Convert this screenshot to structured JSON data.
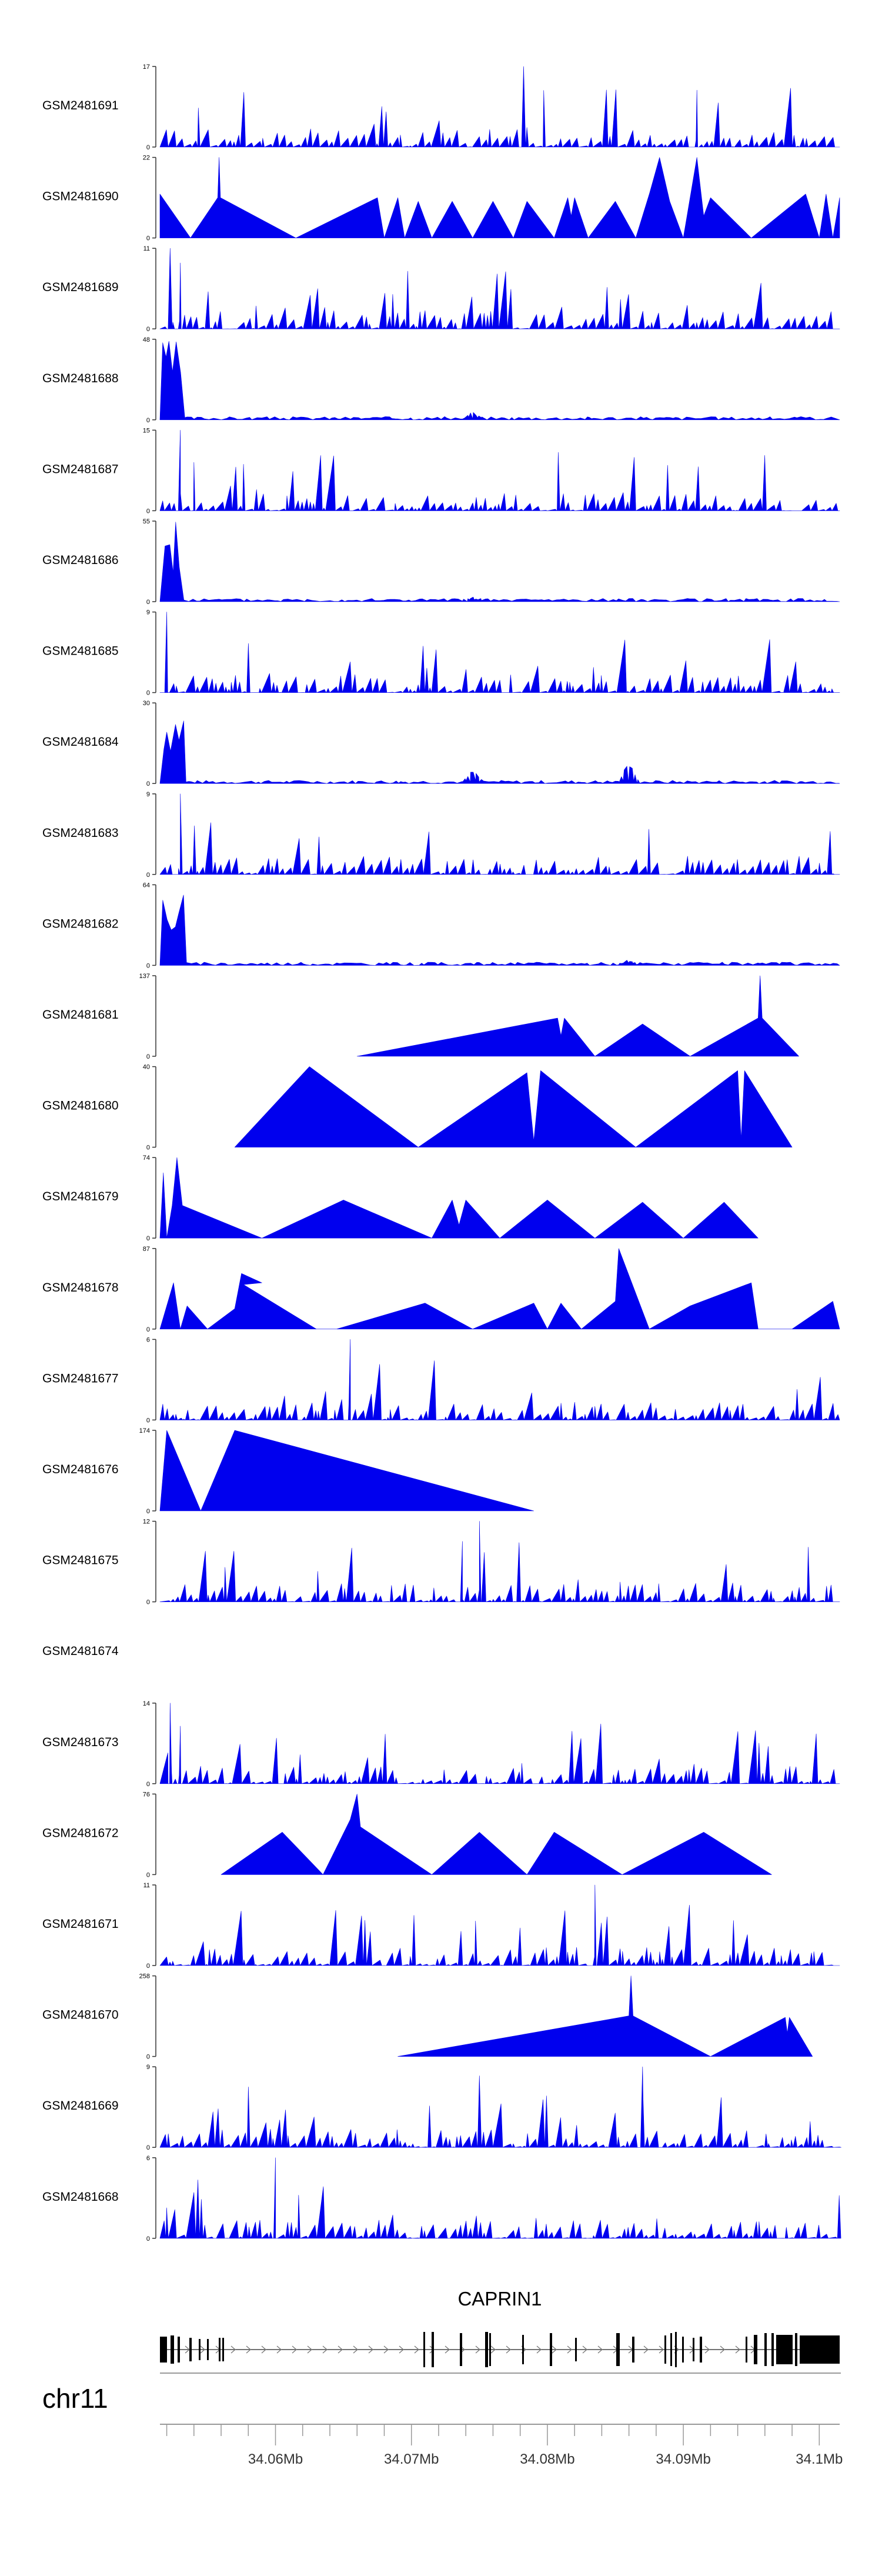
{
  "chart_data": {
    "type": "area",
    "title": "",
    "colors": {
      "signal": "#0000ee",
      "gene": "#000000",
      "axis": "#333333",
      "genome_axis": "#999999"
    },
    "tracks": [
      {
        "name": "GSM2481691",
        "ymax": 17,
        "style": "spiky",
        "seed": 1,
        "peaks": [
          [
            53.5,
            17
          ],
          [
            79,
            12
          ]
        ]
      },
      {
        "name": "GSM2481690",
        "ymax": 22,
        "style": "points",
        "points": [
          [
            0,
            0
          ],
          [
            0,
            12
          ],
          [
            4.5,
            0
          ],
          [
            8.5,
            11
          ],
          [
            8.7,
            22
          ],
          [
            8.9,
            11
          ],
          [
            20,
            0
          ],
          [
            32,
            11
          ],
          [
            33,
            0
          ],
          [
            35,
            11
          ],
          [
            36,
            0
          ],
          [
            38,
            10
          ],
          [
            40,
            0
          ],
          [
            43,
            10
          ],
          [
            46,
            0
          ],
          [
            49,
            10
          ],
          [
            52,
            0
          ],
          [
            54,
            10
          ],
          [
            58,
            0
          ],
          [
            60,
            11
          ],
          [
            60.5,
            6
          ],
          [
            61,
            11
          ],
          [
            63,
            0
          ],
          [
            67,
            10
          ],
          [
            70,
            0
          ],
          [
            72,
            12
          ],
          [
            73.5,
            22
          ],
          [
            75,
            10
          ],
          [
            77,
            0
          ],
          [
            79,
            22
          ],
          [
            80,
            6
          ],
          [
            81,
            11
          ],
          [
            87,
            0
          ],
          [
            95,
            12
          ],
          [
            97,
            0
          ],
          [
            98,
            12
          ],
          [
            99,
            0
          ],
          [
            100,
            11
          ],
          [
            100,
            0
          ]
        ]
      },
      {
        "name": "GSM2481689",
        "ymax": 11,
        "style": "spiky",
        "seed": 2,
        "peaks": [
          [
            1.5,
            11
          ],
          [
            3,
            9
          ]
        ]
      },
      {
        "name": "GSM2481688",
        "ymax": 48,
        "style": "early",
        "seed": 3,
        "peaks": [
          [
            46,
            6
          ]
        ]
      },
      {
        "name": "GSM2481687",
        "ymax": 15,
        "style": "spiky",
        "seed": 4,
        "peaks": [
          [
            3,
            15
          ],
          [
            5,
            9
          ]
        ]
      },
      {
        "name": "GSM2481686",
        "ymax": 55,
        "style": "early",
        "seed": 5,
        "peaks": [
          [
            46,
            4
          ]
        ]
      },
      {
        "name": "GSM2481685",
        "ymax": 9,
        "style": "spiky",
        "seed": 6,
        "peaks": [
          [
            1,
            9
          ]
        ]
      },
      {
        "name": "GSM2481684",
        "ymax": 30,
        "style": "early",
        "seed": 7,
        "peaks": [
          [
            46,
            7
          ],
          [
            69,
            9
          ]
        ]
      },
      {
        "name": "GSM2481683",
        "ymax": 9,
        "style": "spiky",
        "seed": 8,
        "peaks": [
          [
            3,
            9
          ]
        ]
      },
      {
        "name": "GSM2481682",
        "ymax": 64,
        "style": "early",
        "seed": 9,
        "peaks": [
          [
            69,
            5
          ]
        ]
      },
      {
        "name": "GSM2481681",
        "ymax": 137,
        "style": "points",
        "points": [
          [
            29,
            0
          ],
          [
            58.5,
            65
          ],
          [
            59,
            35
          ],
          [
            59.5,
            65
          ],
          [
            64,
            0
          ],
          [
            71,
            55
          ],
          [
            78,
            0
          ],
          [
            88,
            65
          ],
          [
            88.3,
            137
          ],
          [
            88.6,
            65
          ],
          [
            94,
            0
          ]
        ]
      },
      {
        "name": "GSM2481680",
        "ymax": 40,
        "style": "points",
        "points": [
          [
            11,
            0
          ],
          [
            22,
            40
          ],
          [
            38,
            0
          ],
          [
            54,
            37
          ],
          [
            55,
            3
          ],
          [
            56,
            38
          ],
          [
            70,
            0
          ],
          [
            85,
            38
          ],
          [
            85.5,
            4
          ],
          [
            86,
            38
          ],
          [
            93,
            0
          ]
        ]
      },
      {
        "name": "GSM2481679",
        "ymax": 74,
        "style": "points",
        "points": [
          [
            0,
            0
          ],
          [
            0.5,
            60
          ],
          [
            1,
            0
          ],
          [
            1.8,
            30
          ],
          [
            2.5,
            74
          ],
          [
            3.3,
            30
          ],
          [
            15,
            0
          ],
          [
            27,
            35
          ],
          [
            40,
            0
          ],
          [
            43,
            35
          ],
          [
            44,
            12
          ],
          [
            45,
            35
          ],
          [
            50,
            0
          ],
          [
            57,
            35
          ],
          [
            64,
            0
          ],
          [
            71,
            33
          ],
          [
            77,
            0
          ],
          [
            83,
            33
          ],
          [
            88,
            0
          ]
        ]
      },
      {
        "name": "GSM2481678",
        "ymax": 87,
        "style": "points",
        "points": [
          [
            0,
            0
          ],
          [
            2,
            50
          ],
          [
            3,
            0
          ],
          [
            4,
            25
          ],
          [
            7,
            0
          ],
          [
            11,
            22
          ],
          [
            12,
            60
          ],
          [
            15,
            50
          ],
          [
            12.3,
            48
          ],
          [
            23,
            0
          ],
          [
            26,
            0
          ],
          [
            39,
            28
          ],
          [
            46,
            0
          ],
          [
            55,
            28
          ],
          [
            57,
            0
          ],
          [
            59,
            28
          ],
          [
            62,
            0
          ],
          [
            67,
            30
          ],
          [
            67.5,
            87
          ],
          [
            72,
            0
          ],
          [
            78,
            25
          ],
          [
            87,
            50
          ],
          [
            88,
            0
          ],
          [
            93,
            0
          ],
          [
            99,
            30
          ],
          [
            100,
            0
          ]
        ]
      },
      {
        "name": "GSM2481677",
        "ymax": 6,
        "style": "spiky",
        "seed": 10,
        "peaks": [
          [
            28,
            6
          ]
        ]
      },
      {
        "name": "GSM2481676",
        "ymax": 174,
        "style": "points",
        "points": [
          [
            0,
            0
          ],
          [
            1,
            174
          ],
          [
            6,
            0
          ],
          [
            11,
            174
          ],
          [
            55,
            0
          ]
        ]
      },
      {
        "name": "GSM2481675",
        "ymax": 12,
        "style": "spiky",
        "seed": 11,
        "peaks": [
          [
            47,
            12
          ],
          [
            44.5,
            9
          ]
        ]
      },
      {
        "name": "GSM2481674",
        "ymax": null,
        "style": "empty"
      },
      {
        "name": "GSM2481673",
        "ymax": 14,
        "style": "spiky",
        "seed": 12,
        "peaks": [
          [
            1.5,
            14
          ],
          [
            3,
            10
          ]
        ]
      },
      {
        "name": "GSM2481672",
        "ymax": 76,
        "style": "points",
        "points": [
          [
            9,
            0
          ],
          [
            18,
            40
          ],
          [
            24,
            0
          ],
          [
            28,
            52
          ],
          [
            29,
            76
          ],
          [
            29.5,
            45
          ],
          [
            40,
            0
          ],
          [
            47,
            40
          ],
          [
            54,
            0
          ],
          [
            58,
            40
          ],
          [
            68,
            0
          ],
          [
            80,
            40
          ],
          [
            90,
            0
          ]
        ]
      },
      {
        "name": "GSM2481671",
        "ymax": 11,
        "style": "spiky",
        "seed": 13,
        "peaks": [
          [
            64,
            11
          ]
        ]
      },
      {
        "name": "GSM2481670",
        "ymax": 258,
        "style": "points",
        "points": [
          [
            35,
            0
          ],
          [
            69,
            130
          ],
          [
            69.3,
            258
          ],
          [
            69.6,
            130
          ],
          [
            81,
            0
          ],
          [
            92,
            125
          ],
          [
            92.3,
            75
          ],
          [
            92.6,
            125
          ],
          [
            96,
            0
          ]
        ]
      },
      {
        "name": "GSM2481669",
        "ymax": 9,
        "style": "spiky",
        "seed": 14,
        "peaks": [
          [
            47,
            8
          ],
          [
            71,
            9
          ]
        ]
      },
      {
        "name": "GSM2481668",
        "ymax": 6,
        "style": "spiky",
        "seed": 15,
        "peaks": [
          [
            17,
            6
          ]
        ]
      }
    ],
    "gene": {
      "label": "CAPRIN1"
    },
    "chromosome": {
      "label": "chr11"
    },
    "genome_axis": {
      "range_mb": [
        34.0515,
        34.1015
      ],
      "major_ticks": [
        34.06,
        34.07,
        34.08,
        34.09,
        34.1
      ],
      "tick_labels": [
        "34.06Mb",
        "34.07Mb",
        "34.08Mb",
        "34.09Mb",
        "34.1Mb"
      ],
      "minor_step_mb": 0.002
    }
  }
}
